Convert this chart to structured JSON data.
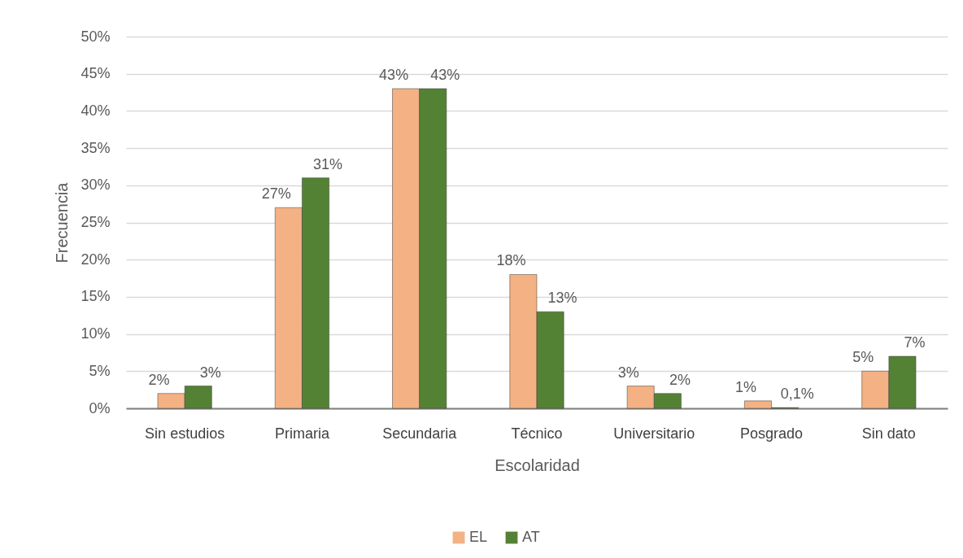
{
  "chart_data": {
    "type": "bar",
    "xlabel": "Escolaridad",
    "ylabel": "Frecuencia",
    "categories": [
      "Sin estudios",
      "Primaria",
      "Secundaria",
      "Técnico",
      "Universitario",
      "Posgrado",
      "Sin dato"
    ],
    "series": [
      {
        "name": "EL",
        "color": "#f4b183",
        "values": [
          2,
          27,
          43,
          18,
          3,
          1,
          5
        ],
        "value_labels": [
          "2%",
          "27%",
          "43%",
          "18%",
          "3%",
          "1%",
          "5%"
        ]
      },
      {
        "name": "AT",
        "color": "#548235",
        "values": [
          3,
          31,
          43,
          13,
          2,
          0.1,
          7
        ],
        "value_labels": [
          "3%",
          "31%",
          "43%",
          "13%",
          "2%",
          "0,1%",
          "7%"
        ]
      }
    ],
    "ylim": [
      0,
      50
    ],
    "yticks": [
      {
        "value": 0,
        "label": "0%"
      },
      {
        "value": 5,
        "label": "5%"
      },
      {
        "value": 10,
        "label": "10%"
      },
      {
        "value": 15,
        "label": "15%"
      },
      {
        "value": 20,
        "label": "20%"
      },
      {
        "value": 25,
        "label": "25%"
      },
      {
        "value": 30,
        "label": "30%"
      },
      {
        "value": 35,
        "label": "35%"
      },
      {
        "value": 40,
        "label": "40%"
      },
      {
        "value": 45,
        "label": "45%"
      },
      {
        "value": 50,
        "label": "50%"
      }
    ],
    "grid": "y",
    "legend": "bottom"
  }
}
